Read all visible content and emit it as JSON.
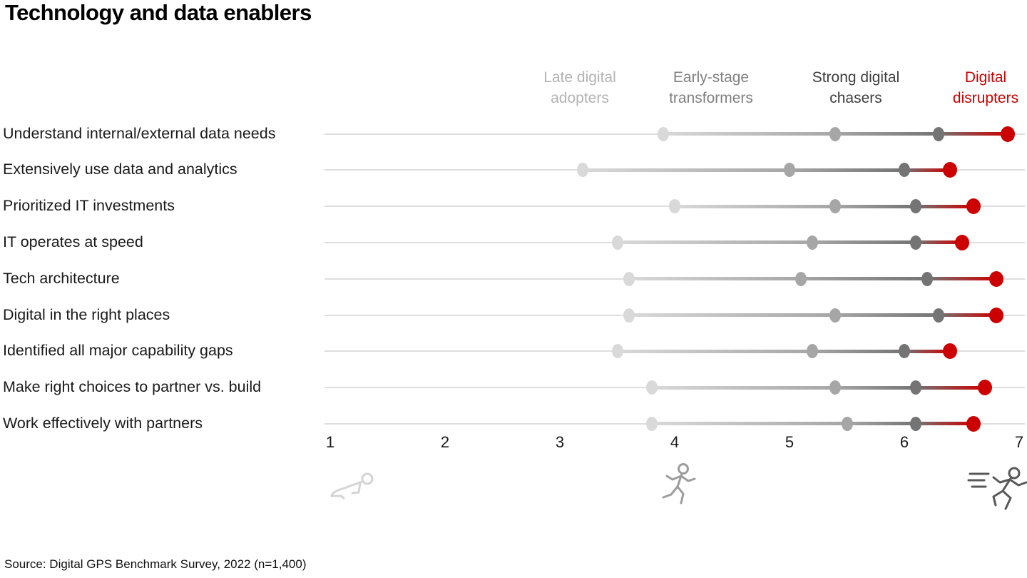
{
  "title": "Technology and data enablers",
  "source": "Source: Digital GPS Benchmark Survey, 2022 (n=1,400)",
  "legend": {
    "items": [
      {
        "label": "Late digital adopters",
        "color": "#b3b3b3"
      },
      {
        "label": "Early-stage transformers",
        "color": "#808080"
      },
      {
        "label": "Strong digital chasers",
        "color": "#3d3d3d"
      },
      {
        "label": "Digital disrupters",
        "color": "#cc0000"
      }
    ]
  },
  "chart_data": {
    "type": "scatter",
    "subtype": "dumbbell-dot-plot",
    "title": "Technology and data enablers",
    "xlabel": "",
    "ylabel": "",
    "x_axis": {
      "min": 1,
      "max": 7,
      "ticks": [
        1,
        2,
        3,
        4,
        5,
        6,
        7
      ]
    },
    "grid": false,
    "legend_position": "top",
    "categories": [
      "Understand internal/external data needs",
      "Extensively use data and analytics",
      "Prioritized IT investments",
      "IT operates at speed",
      "Tech architecture",
      "Digital in the right places",
      "Identified all major capability gaps",
      "Make right choices to partner vs. build",
      "Work effectively with partners"
    ],
    "series": [
      {
        "name": "Late digital adopters",
        "color": "#d9d9d9",
        "values": [
          3.9,
          3.2,
          4.0,
          3.5,
          3.6,
          3.6,
          3.5,
          3.8,
          3.8
        ]
      },
      {
        "name": "Early-stage transformers",
        "color": "#a6a6a6",
        "values": [
          5.4,
          5.0,
          5.4,
          5.2,
          5.1,
          5.4,
          5.2,
          5.4,
          5.5
        ]
      },
      {
        "name": "Strong digital chasers",
        "color": "#747474",
        "values": [
          6.3,
          6.0,
          6.1,
          6.1,
          6.2,
          6.3,
          6.0,
          6.1,
          6.1
        ]
      },
      {
        "name": "Digital disrupters",
        "color": "#cc0000",
        "values": [
          6.9,
          6.4,
          6.6,
          6.5,
          6.8,
          6.8,
          6.4,
          6.7,
          6.6
        ]
      }
    ],
    "annotations": {
      "icons": [
        "crawling-person",
        "running-person",
        "sprinting-person-with-speed-lines"
      ]
    },
    "track_color": "#dedede"
  }
}
